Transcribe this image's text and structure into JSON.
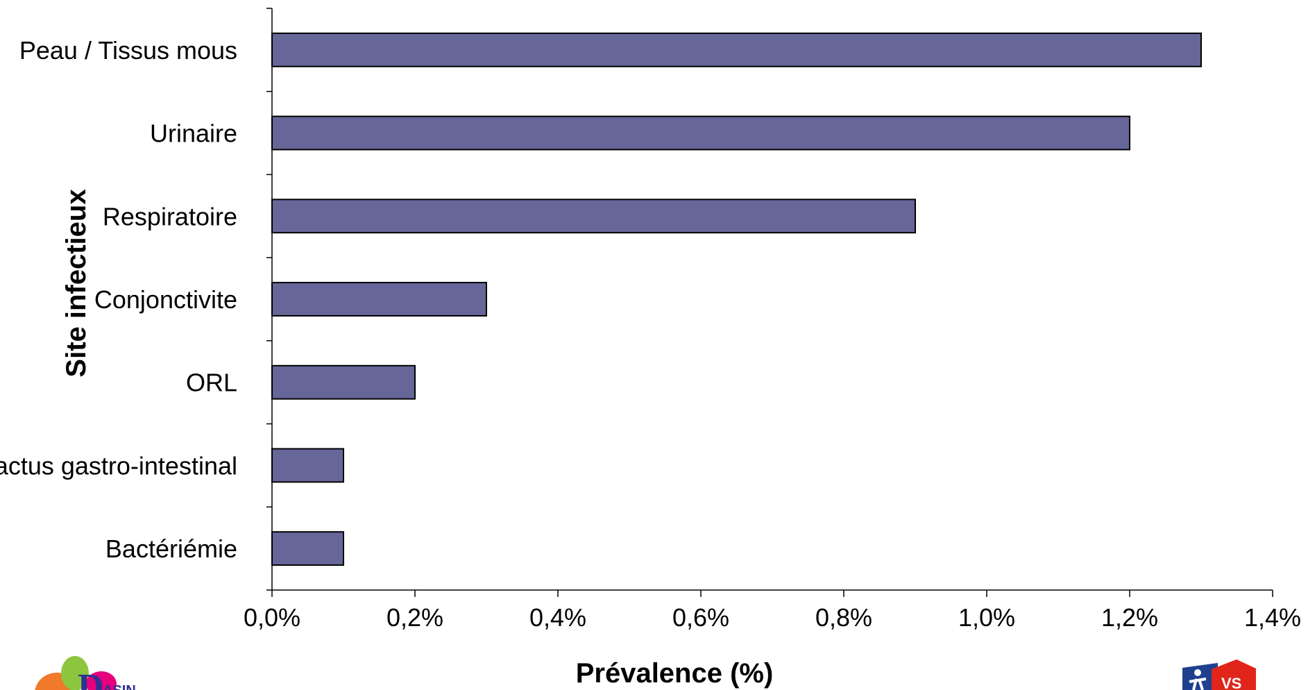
{
  "chart_data": {
    "type": "bar",
    "orientation": "horizontal",
    "categories": [
      "Peau / Tissus mous",
      "Urinaire",
      "Respiratoire",
      "Conjonctivite",
      "ORL",
      "Tractus gastro-intestinal",
      "Bactériémie"
    ],
    "values": [
      1.3,
      1.2,
      0.9,
      0.3,
      0.2,
      0.1,
      0.1
    ],
    "xlabel": "Prévalence (%)",
    "ylabel": "Site infectieux",
    "xlim": [
      0,
      1.4
    ],
    "xticks": [
      "0,0%",
      "0,2%",
      "0,4%",
      "0,6%",
      "0,8%",
      "1,0%",
      "1,2%",
      "1,4%"
    ],
    "bar_color": "#666699",
    "grid": false,
    "legend": "none"
  },
  "logos": {
    "left": "logo-left",
    "right": "logo-right"
  }
}
